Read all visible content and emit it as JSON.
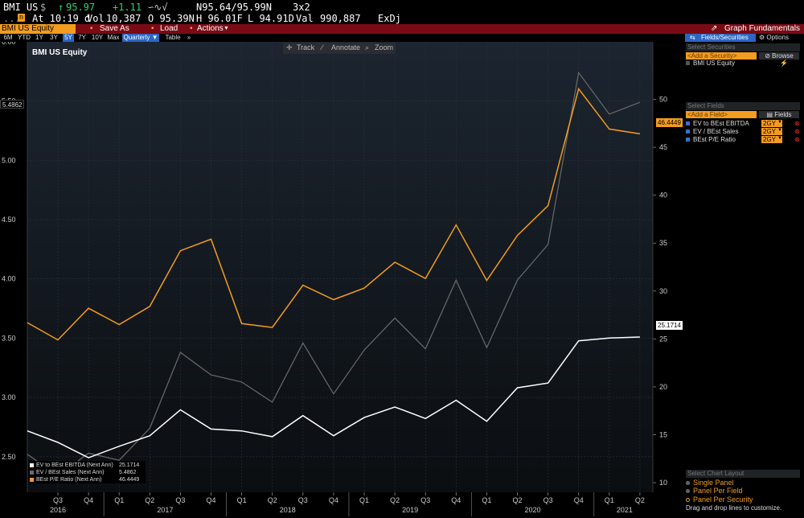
{
  "ticker": {
    "symbol": "BMI US",
    "currency": "$",
    "last_price": "95.97",
    "change": "+1.11",
    "bid_ask": "N95.64/95.99N",
    "size": "3x2",
    "time": "At 10:19 d",
    "volume_label": "Vol",
    "volume": "10,387",
    "open": "O 95.39N",
    "high": "H 96.01F",
    "low": "L 94.91D",
    "value_label": "Val",
    "value": "990,887",
    "exchange": "ExDj"
  },
  "command_bar": {
    "security": "BMI US Equity",
    "save_as": "Save As",
    "load": "Load",
    "actions": "Actions",
    "graph_title": "Graph Fundamentals"
  },
  "period_buttons": [
    "6M",
    "YTD",
    "1Y",
    "3Y",
    "5Y",
    "7Y",
    "10Y",
    "Max"
  ],
  "active_period": "5Y",
  "frequency": "Quarterly",
  "table_button": "Table",
  "tools": {
    "track": "Track",
    "annotate": "Annotate",
    "zoom": "Zoom"
  },
  "panel": {
    "fields_tab": "Fields/Securities",
    "options_tab": "Options",
    "select_securities": "Select Securities",
    "add_security_placeholder": "<Add a Security>",
    "browse": "Browse",
    "security_item": "BMI US Equity",
    "select_fields": "Select Fields",
    "add_field_placeholder": "<Add a Field>",
    "fields_button": "Fields",
    "fields": [
      {
        "name": "EV to BEst EBITDA",
        "period": "2GY"
      },
      {
        "name": "EV / BEst Sales",
        "period": "2GY"
      },
      {
        "name": "BEst P/E Ratio",
        "period": "2GY"
      }
    ],
    "layout_header": "Select Chart Layout",
    "layouts": [
      "Single Panel",
      "Panel Per Field",
      "Panel Per Security"
    ],
    "drag_hint": "Drag and drop lines to customize."
  },
  "colors": {
    "ev_ebitda": "#ffffff",
    "ev_sales": "#6b6b6b",
    "pe_ratio": "#f39c1f",
    "background_top": "#1c2530",
    "background_bottom": "#0b0e11",
    "command_bar": "#7a0b14",
    "accent_blue": "#2a66c4"
  },
  "chart_data": {
    "type": "line",
    "title": "BMI US Equity",
    "x": [
      "Q3 2016",
      "Q4 2016",
      "Q1 2017",
      "Q2 2017",
      "Q3 2017",
      "Q4 2017",
      "Q1 2018",
      "Q2 2018",
      "Q3 2018",
      "Q4 2018",
      "Q1 2019",
      "Q2 2019",
      "Q3 2019",
      "Q4 2019",
      "Q1 2020",
      "Q2 2020",
      "Q3 2020",
      "Q4 2020",
      "Q1 2021",
      "Q2 2021"
    ],
    "x_ticks": [
      "Q3",
      "Q4",
      "Q1",
      "Q2",
      "Q3",
      "Q4",
      "Q1",
      "Q2",
      "Q3",
      "Q4",
      "Q1",
      "Q2",
      "Q3",
      "Q4",
      "Q1",
      "Q2",
      "Q3",
      "Q4",
      "Q1",
      "Q2"
    ],
    "year_labels": [
      "2016",
      "2017",
      "2018",
      "2019",
      "2020",
      "2021"
    ],
    "left_axis": {
      "ylim": [
        2.2,
        6.0
      ],
      "ticks": [
        "2.50",
        "3.00",
        "3.50",
        "4.00",
        "4.50",
        "5.00",
        "5.50",
        "6.00"
      ]
    },
    "right_axis": {
      "ylim": [
        9,
        56
      ],
      "ticks": [
        "10",
        "15",
        "20",
        "25",
        "30",
        "35",
        "40",
        "45",
        "50"
      ]
    },
    "series": [
      {
        "name": "EV to BEst EBITDA (Next Ann)",
        "axis": "right",
        "color": "#ffffff",
        "start_value": 15.4,
        "values": [
          14.2,
          12.6,
          13.8,
          14.9,
          17.6,
          15.6,
          15.4,
          14.8,
          17.0,
          14.9,
          16.8,
          17.9,
          16.7,
          18.6,
          16.4,
          19.9,
          20.4,
          24.8,
          25.1,
          25.2
        ],
        "last_value_label": "25.1714"
      },
      {
        "name": "EV / BEst Sales (Next Ann)",
        "axis": "left",
        "color": "#6b6b6b",
        "start_value": 2.52,
        "values": [
          2.34,
          2.53,
          2.47,
          2.74,
          3.38,
          3.19,
          3.13,
          2.96,
          3.46,
          3.03,
          3.4,
          3.67,
          3.41,
          3.99,
          3.42,
          3.99,
          4.29,
          5.74,
          5.39,
          5.49
        ],
        "last_value_label": "5.4862"
      },
      {
        "name": "BEst P/E Ratio (Next Ann)",
        "axis": "right",
        "color": "#f39c1f",
        "start_value": 26.7,
        "values": [
          24.9,
          28.2,
          26.5,
          28.4,
          34.2,
          35.4,
          26.6,
          26.2,
          30.6,
          29.1,
          30.3,
          33.0,
          31.3,
          36.9,
          31.1,
          35.8,
          38.9,
          51.1,
          46.9,
          46.4
        ],
        "last_value_label": "46.4449"
      }
    ],
    "grid": true,
    "legend": "bottom-left"
  }
}
